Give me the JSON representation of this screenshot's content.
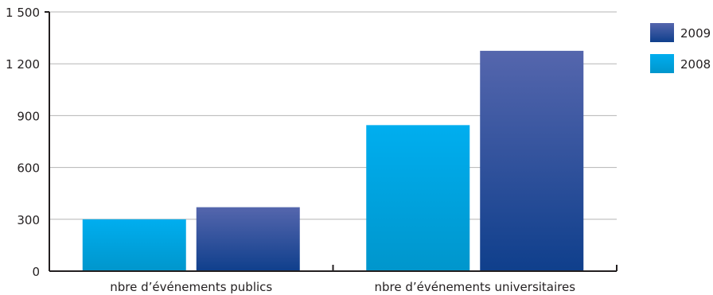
{
  "chart_data": {
    "type": "bar",
    "categories": [
      "nbre d’événements publics",
      "nbre d’événements universitaires"
    ],
    "series": [
      {
        "name": "2008",
        "values": [
          300,
          845
        ],
        "color": "#00aeef",
        "color_dark": "#0096cc"
      },
      {
        "name": "2009",
        "values": [
          370,
          1275
        ],
        "color": "#5566ad",
        "color_dark": "#0f3f8c"
      }
    ],
    "y_ticks": [
      {
        "value": 0,
        "label": "0"
      },
      {
        "value": 300,
        "label": "300"
      },
      {
        "value": 600,
        "label": "600"
      },
      {
        "value": 900,
        "label": "900"
      },
      {
        "value": 1200,
        "label": "1 200"
      },
      {
        "value": 1500,
        "label": "1 500"
      }
    ],
    "ylim": [
      0,
      1500
    ],
    "grid": true,
    "legend": {
      "placement": "top-right",
      "entries": [
        {
          "label": "2009",
          "series_index": 1
        },
        {
          "label": "2008",
          "series_index": 0
        }
      ]
    }
  }
}
